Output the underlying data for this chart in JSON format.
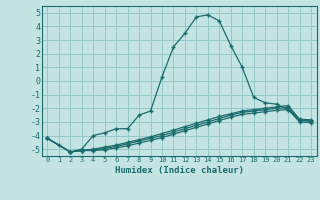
{
  "xlabel": "Humidex (Indice chaleur)",
  "xlim": [
    -0.5,
    23.5
  ],
  "ylim": [
    -5.5,
    5.5
  ],
  "yticks": [
    -5,
    -4,
    -3,
    -2,
    -1,
    0,
    1,
    2,
    3,
    4,
    5
  ],
  "xticks": [
    0,
    1,
    2,
    3,
    4,
    5,
    6,
    7,
    8,
    9,
    10,
    11,
    12,
    13,
    14,
    15,
    16,
    17,
    18,
    19,
    20,
    21,
    22,
    23
  ],
  "bg_color": "#c4e4e4",
  "grid_color": "#96c8c8",
  "line_color": "#1a6b6b",
  "line1_x": [
    0,
    1,
    2,
    3,
    4,
    5,
    6,
    7,
    8,
    9,
    10,
    11,
    12,
    13,
    14,
    15,
    16,
    17,
    18,
    19,
    20,
    21,
    22,
    23
  ],
  "line1_y": [
    -4.2,
    -4.7,
    -5.2,
    -5.0,
    -4.0,
    -3.8,
    -3.5,
    -3.5,
    -2.5,
    -2.2,
    0.3,
    2.5,
    3.5,
    4.7,
    4.85,
    4.4,
    2.6,
    1.0,
    -1.2,
    -1.6,
    -1.7,
    -2.1,
    -2.85,
    -2.9
  ],
  "line2_x": [
    0,
    2,
    3,
    4,
    5,
    6,
    7,
    8,
    9,
    10,
    11,
    12,
    13,
    14,
    15,
    16,
    17,
    18,
    19,
    20,
    21,
    22,
    23
  ],
  "line2_y": [
    -4.2,
    -5.2,
    -5.1,
    -5.0,
    -4.85,
    -4.7,
    -4.5,
    -4.3,
    -4.1,
    -3.85,
    -3.6,
    -3.35,
    -3.1,
    -2.85,
    -2.6,
    -2.4,
    -2.2,
    -2.1,
    -2.0,
    -1.9,
    -1.8,
    -2.8,
    -2.85
  ],
  "line3_x": [
    0,
    2,
    3,
    4,
    5,
    6,
    7,
    8,
    9,
    10,
    11,
    12,
    13,
    14,
    15,
    16,
    17,
    18,
    19,
    20,
    21,
    22,
    23
  ],
  "line3_y": [
    -4.2,
    -5.2,
    -5.1,
    -5.05,
    -4.95,
    -4.8,
    -4.6,
    -4.4,
    -4.2,
    -4.0,
    -3.75,
    -3.5,
    -3.25,
    -3.0,
    -2.75,
    -2.5,
    -2.3,
    -2.2,
    -2.1,
    -2.0,
    -1.95,
    -2.9,
    -2.95
  ],
  "line4_x": [
    0,
    2,
    3,
    4,
    5,
    6,
    7,
    8,
    9,
    10,
    11,
    12,
    13,
    14,
    15,
    16,
    17,
    18,
    19,
    20,
    21,
    22,
    23
  ],
  "line4_y": [
    -4.2,
    -5.2,
    -5.1,
    -5.1,
    -5.05,
    -4.9,
    -4.75,
    -4.55,
    -4.35,
    -4.15,
    -3.9,
    -3.65,
    -3.4,
    -3.15,
    -2.9,
    -2.65,
    -2.45,
    -2.35,
    -2.25,
    -2.15,
    -2.1,
    -3.0,
    -3.05
  ]
}
